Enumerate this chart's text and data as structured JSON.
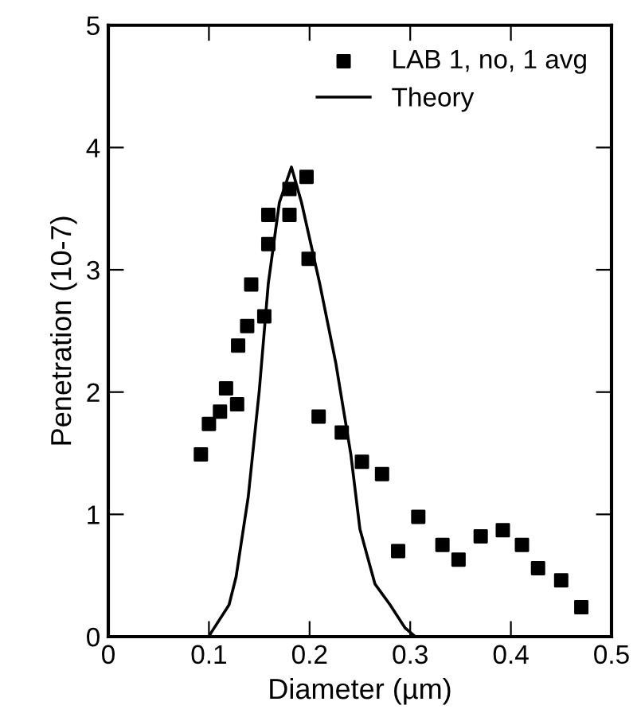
{
  "chart_data": {
    "type": "scatter",
    "xlabel": "Diameter (µm)",
    "ylabel": "Penetration (10-7)",
    "xlim": [
      0,
      0.5
    ],
    "ylim": [
      0,
      5
    ],
    "xticks": [
      0,
      0.1,
      0.2,
      0.3,
      0.4,
      {
        "value": 0.5,
        "label": "0.5"
      }
    ],
    "yticks": [
      0,
      1,
      2,
      3,
      4,
      5
    ],
    "grid": false,
    "legend": "top right",
    "series": [
      {
        "name": "LAB 1, no, 1 avg",
        "marker": "square",
        "color": "#000000",
        "x": [
          0.092,
          0.1,
          0.111,
          0.117,
          0.128,
          0.129,
          0.138,
          0.142,
          0.155,
          0.159,
          0.159,
          0.18,
          0.18,
          0.197,
          0.199,
          0.209,
          0.232,
          0.252,
          0.272,
          0.288,
          0.308,
          0.332,
          0.348,
          0.37,
          0.392,
          0.411,
          0.427,
          0.45,
          0.47
        ],
        "values": [
          1.49,
          1.74,
          1.84,
          2.03,
          1.9,
          2.38,
          2.54,
          2.88,
          2.62,
          3.21,
          3.45,
          3.45,
          3.66,
          3.76,
          3.09,
          1.8,
          1.67,
          1.43,
          1.33,
          0.7,
          0.98,
          0.75,
          0.63,
          0.82,
          0.87,
          0.75,
          0.56,
          0.46,
          0.24
        ]
      },
      {
        "name": "Theory",
        "type": "line",
        "marker": "none",
        "line_style": "solid",
        "color": "#000000",
        "x": [
          0.1,
          0.102,
          0.12,
          0.127,
          0.139,
          0.15,
          0.159,
          0.17,
          0.182,
          0.192,
          0.21,
          0.226,
          0.241,
          0.25,
          0.265,
          0.28,
          0.295,
          0.305
        ],
        "values": [
          0,
          0.03,
          0.26,
          0.49,
          1.14,
          2.01,
          2.89,
          3.55,
          3.84,
          3.55,
          2.89,
          2.24,
          1.49,
          0.88,
          0.43,
          0.26,
          0.07,
          0
        ]
      }
    ]
  }
}
